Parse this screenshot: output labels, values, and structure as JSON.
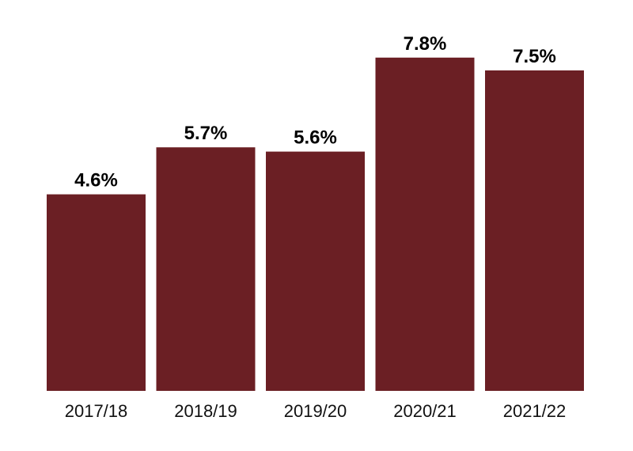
{
  "chart_data": {
    "type": "bar",
    "categories": [
      "2017/18",
      "2018/19",
      "2019/20",
      "2020/21",
      "2021/22"
    ],
    "values": [
      4.6,
      5.7,
      5.6,
      7.8,
      7.5
    ],
    "data_labels": [
      "4.6%",
      "5.7%",
      "5.6%",
      "7.8%",
      "7.5%"
    ],
    "title": "",
    "xlabel": "",
    "ylabel": "",
    "ylim": [
      0,
      8.5
    ],
    "grid": false,
    "legend": "none",
    "bar_color": "#6b1f24"
  }
}
